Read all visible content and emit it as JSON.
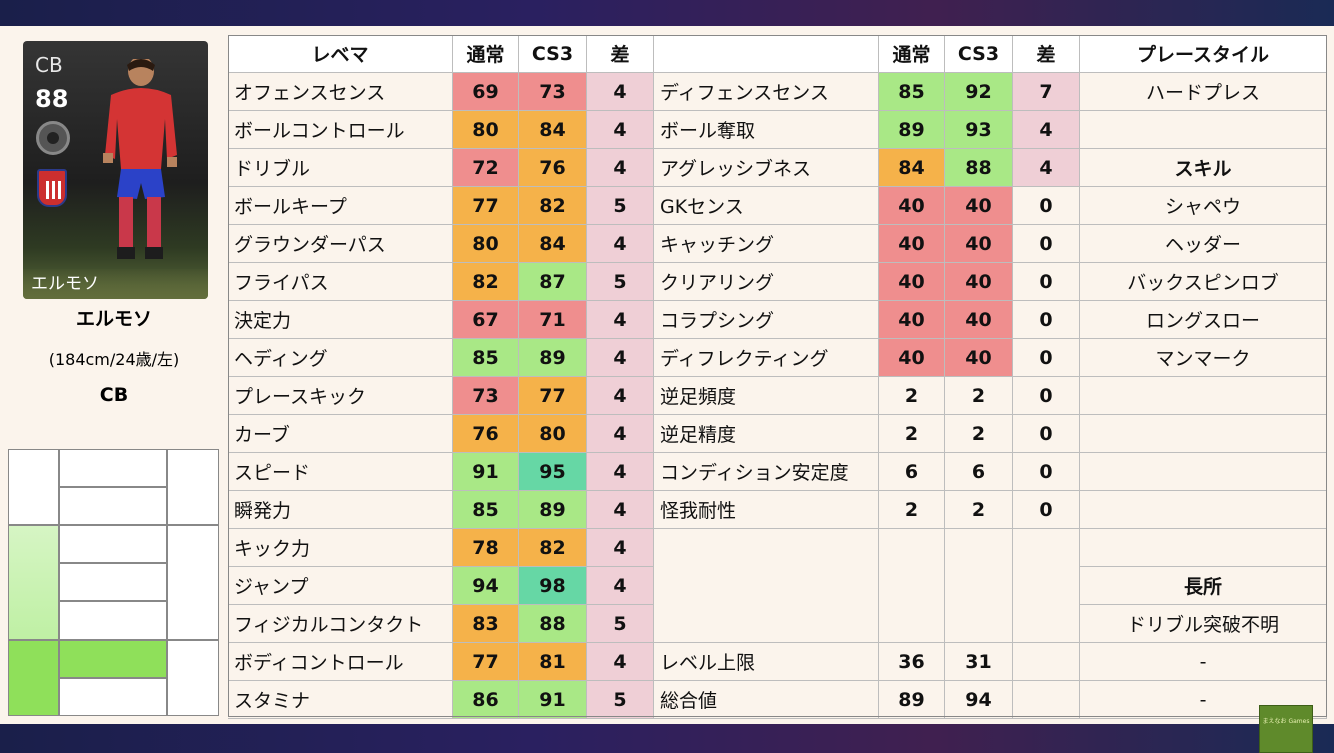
{
  "card": {
    "position": "CB",
    "rating": "88",
    "name": "エルモソ"
  },
  "player": {
    "name": "エルモソ",
    "meta": "(184cm/24歳/左)",
    "position": "CB"
  },
  "headers": {
    "left_label": "レベマ",
    "normal": "通常",
    "cs3": "CS3",
    "diff": "差",
    "right_label": "",
    "playstyle": "プレースタイル"
  },
  "left_rows": [
    {
      "label": "オフェンスセンス",
      "normal": 69,
      "cs3": 73,
      "diff": 4
    },
    {
      "label": "ボールコントロール",
      "normal": 80,
      "cs3": 84,
      "diff": 4
    },
    {
      "label": "ドリブル",
      "normal": 72,
      "cs3": 76,
      "diff": 4
    },
    {
      "label": "ボールキープ",
      "normal": 77,
      "cs3": 82,
      "diff": 5
    },
    {
      "label": "グラウンダーパス",
      "normal": 80,
      "cs3": 84,
      "diff": 4
    },
    {
      "label": "フライパス",
      "normal": 82,
      "cs3": 87,
      "diff": 5
    },
    {
      "label": "決定力",
      "normal": 67,
      "cs3": 71,
      "diff": 4
    },
    {
      "label": "ヘディング",
      "normal": 85,
      "cs3": 89,
      "diff": 4
    },
    {
      "label": "プレースキック",
      "normal": 73,
      "cs3": 77,
      "diff": 4
    },
    {
      "label": "カーブ",
      "normal": 76,
      "cs3": 80,
      "diff": 4
    },
    {
      "label": "スピード",
      "normal": 91,
      "cs3": 95,
      "diff": 4
    },
    {
      "label": "瞬発力",
      "normal": 85,
      "cs3": 89,
      "diff": 4
    },
    {
      "label": "キック力",
      "normal": 78,
      "cs3": 82,
      "diff": 4
    },
    {
      "label": "ジャンプ",
      "normal": 94,
      "cs3": 98,
      "diff": 4
    },
    {
      "label": "フィジカルコンタクト",
      "normal": 83,
      "cs3": 88,
      "diff": 5
    },
    {
      "label": "ボディコントロール",
      "normal": 77,
      "cs3": 81,
      "diff": 4
    },
    {
      "label": "スタミナ",
      "normal": 86,
      "cs3": 91,
      "diff": 5
    }
  ],
  "right_rows": [
    {
      "label": "ディフェンスセンス",
      "normal": 85,
      "cs3": 92,
      "diff": 7
    },
    {
      "label": "ボール奪取",
      "normal": 89,
      "cs3": 93,
      "diff": 4
    },
    {
      "label": "アグレッシブネス",
      "normal": 84,
      "cs3": 88,
      "diff": 4
    },
    {
      "label": "GKセンス",
      "normal": 40,
      "cs3": 40,
      "diff": 0
    },
    {
      "label": "キャッチング",
      "normal": 40,
      "cs3": 40,
      "diff": 0
    },
    {
      "label": "クリアリング",
      "normal": 40,
      "cs3": 40,
      "diff": 0
    },
    {
      "label": "コラプシング",
      "normal": 40,
      "cs3": 40,
      "diff": 0
    },
    {
      "label": "ディフレクティング",
      "normal": 40,
      "cs3": 40,
      "diff": 0
    },
    {
      "label": "逆足頻度",
      "normal": 2,
      "cs3": 2,
      "diff": 0
    },
    {
      "label": "逆足精度",
      "normal": 2,
      "cs3": 2,
      "diff": 0
    },
    {
      "label": "コンディション安定度",
      "normal": 6,
      "cs3": 6,
      "diff": 0
    },
    {
      "label": "怪我耐性",
      "normal": 2,
      "cs3": 2,
      "diff": 0
    }
  ],
  "summary_rows": [
    {
      "label": "レベル上限",
      "normal": 36,
      "cs3": 31
    },
    {
      "label": "総合値",
      "normal": 89,
      "cs3": 94
    }
  ],
  "side_column": [
    "ハードプレス",
    "",
    "スキル",
    "シャペウ",
    "ヘッダー",
    "バックスピンロブ",
    "ロングスロー",
    "マンマーク",
    "",
    "",
    "",
    "",
    "",
    "長所",
    "ドリブル突破不明",
    "-",
    "-"
  ],
  "side_bold": [
    false,
    false,
    true,
    false,
    false,
    false,
    false,
    false,
    false,
    false,
    false,
    false,
    false,
    true,
    false,
    false,
    false
  ],
  "colors": {
    "red": "#ef8e8e",
    "orange": "#f5b24a",
    "green_light": "#a9e886",
    "green_mid": "#7fe07c",
    "teal": "#66d7a5",
    "pink": "#efcfd6",
    "pos_light": "#d6f5c4",
    "pos_bright": "#8fe05a"
  },
  "logo_text": "まえなお Games"
}
